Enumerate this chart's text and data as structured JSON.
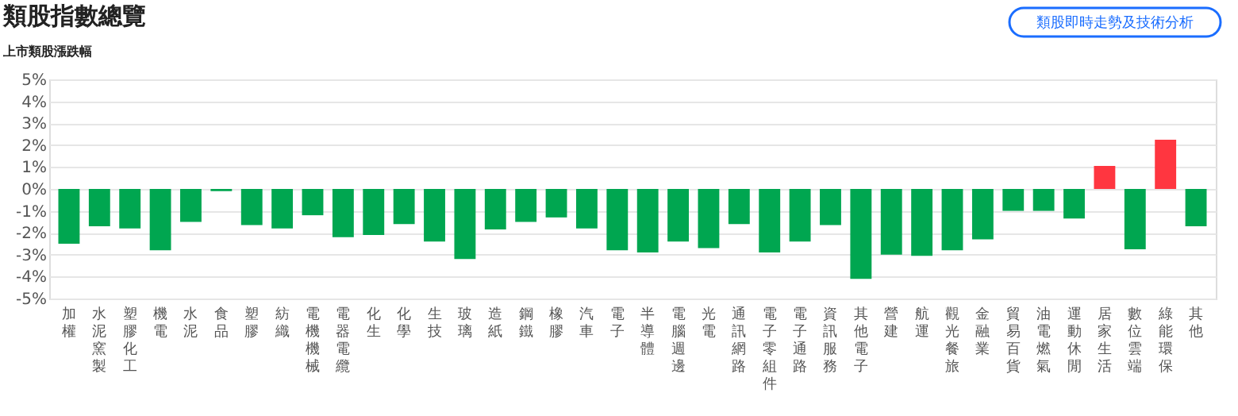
{
  "chart_data": {
    "type": "bar",
    "title": "類股指數總覽",
    "subtitle": "上市類股漲跌幅",
    "annotations": [
      "類股即時走勢及技術分析"
    ],
    "categories": [
      "加權",
      "水泥窯製",
      "塑膠化工",
      "機電",
      "水泥",
      "食品",
      "塑膠",
      "紡織",
      "電機機械",
      "電器電纜",
      "化生",
      "化學",
      "生技",
      "玻璃",
      "造紙",
      "鋼鐵",
      "橡膠",
      "汽車",
      "電子",
      "半導體",
      "電腦週邊",
      "光電",
      "通訊網路",
      "電子零組件",
      "電子通路",
      "資訊服務",
      "其他電子",
      "營建",
      "航運",
      "觀光餐旅",
      "金融業",
      "貿易百貨",
      "油電燃氣",
      "運動休閒",
      "居家生活",
      "數位雲端",
      "綠能環保",
      "其他"
    ],
    "values": [
      -2.5,
      -1.7,
      -1.8,
      -2.8,
      -1.5,
      -0.1,
      -1.65,
      -1.8,
      -1.2,
      -2.2,
      -2.1,
      -1.6,
      -2.4,
      -3.2,
      -1.85,
      -1.5,
      -1.3,
      -1.8,
      -2.8,
      -2.9,
      -2.4,
      -2.7,
      -1.6,
      -2.9,
      -2.4,
      -1.65,
      -4.1,
      -3.0,
      -3.05,
      -2.8,
      -2.3,
      -1.0,
      -1.0,
      -1.35,
      1.05,
      -2.75,
      2.25,
      -1.7
    ],
    "colors": [
      "#00a650",
      "#00a650",
      "#00a650",
      "#00a650",
      "#00a650",
      "#00a650",
      "#00a650",
      "#00a650",
      "#00a650",
      "#00a650",
      "#00a650",
      "#00a650",
      "#00a650",
      "#00a650",
      "#00a650",
      "#00a650",
      "#00a650",
      "#00a650",
      "#00a650",
      "#00a650",
      "#00a650",
      "#00a650",
      "#00a650",
      "#00a650",
      "#00a650",
      "#00a650",
      "#00a650",
      "#00a650",
      "#00a650",
      "#00a650",
      "#00a650",
      "#00a650",
      "#00a650",
      "#00a650",
      "#ff3640",
      "#00a650",
      "#ff3640",
      "#00a650"
    ],
    "ylim": [
      -5,
      5
    ],
    "yticks": [
      {
        "value": -5,
        "label": "-5%"
      },
      {
        "value": -4,
        "label": "-4%"
      },
      {
        "value": -3,
        "label": "-3%"
      },
      {
        "value": -2,
        "label": "-2%"
      },
      {
        "value": -1,
        "label": "-1%"
      },
      {
        "value": 0,
        "label": "0%"
      },
      {
        "value": 1,
        "label": "1%"
      },
      {
        "value": 2,
        "label": "2%"
      },
      {
        "value": 3,
        "label": "3%"
      },
      {
        "value": 4,
        "label": "4%"
      },
      {
        "value": 5,
        "label": "5%"
      }
    ],
    "grid": "y"
  }
}
